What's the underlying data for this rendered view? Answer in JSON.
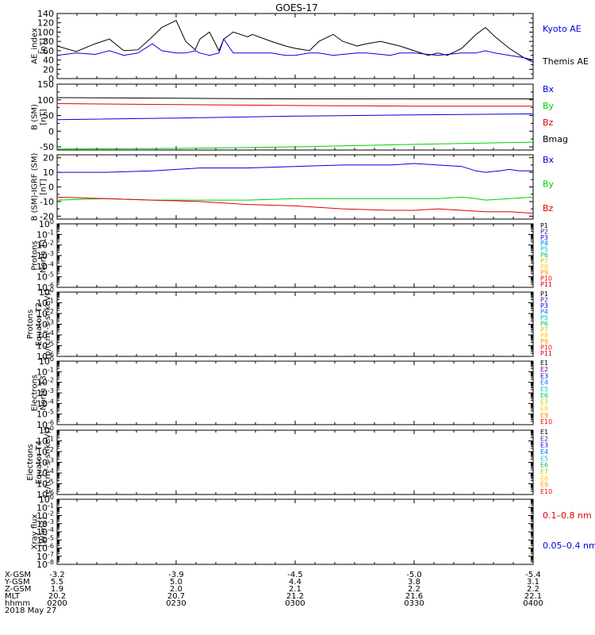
{
  "title": "GOES-17",
  "colors": {
    "black": "#000000",
    "blue": "#0000e0",
    "green": "#00d000",
    "red": "#e00000",
    "p_labels": [
      "#000000",
      "#700070",
      "#0000e0",
      "#0070ff",
      "#00c8c8",
      "#00c070",
      "#c8c800",
      "#ffd000",
      "#ff9000",
      "#ff0000",
      "#c00000"
    ]
  },
  "chart_data": [
    {
      "type": "line",
      "ylabel": [
        "AE_index",
        "[nT]"
      ],
      "ylim": [
        0,
        140
      ],
      "yticks": [
        "0",
        "20",
        "40",
        "60",
        "80",
        "100",
        "120",
        "140"
      ],
      "legend": [
        {
          "label": "Kyoto AE",
          "color": "#0000e0"
        },
        {
          "label": "Themis AE",
          "color": "#000000"
        }
      ],
      "series": [
        {
          "name": "Themis AE",
          "color": "#000000",
          "x": [
            0,
            4,
            8,
            11,
            14,
            17,
            20,
            22,
            25,
            27,
            29,
            30,
            32,
            34,
            35,
            37,
            40,
            41,
            45,
            48,
            50,
            53,
            55,
            58,
            60,
            63,
            65,
            68,
            70,
            72,
            75,
            78,
            80,
            82,
            85,
            88,
            90,
            92,
            95,
            98,
            100
          ],
          "y": [
            70,
            58,
            75,
            85,
            60,
            62,
            90,
            110,
            125,
            80,
            62,
            85,
            100,
            60,
            85,
            100,
            90,
            95,
            80,
            70,
            65,
            60,
            80,
            95,
            80,
            70,
            75,
            80,
            75,
            70,
            60,
            50,
            55,
            50,
            65,
            95,
            110,
            90,
            65,
            45,
            40
          ]
        },
        {
          "name": "Kyoto AE",
          "color": "#0000e0",
          "x": [
            0,
            4,
            8,
            11,
            14,
            17,
            20,
            22,
            25,
            27,
            29,
            30,
            32,
            34,
            35,
            37,
            40,
            41,
            45,
            48,
            50,
            53,
            55,
            58,
            60,
            63,
            65,
            68,
            70,
            72,
            75,
            78,
            80,
            82,
            85,
            88,
            90,
            92,
            95,
            98,
            100
          ],
          "y": [
            50,
            55,
            52,
            60,
            50,
            55,
            75,
            60,
            55,
            55,
            60,
            55,
            50,
            55,
            85,
            55,
            55,
            55,
            55,
            50,
            50,
            55,
            55,
            50,
            52,
            55,
            55,
            52,
            50,
            55,
            55,
            52,
            50,
            52,
            55,
            55,
            60,
            55,
            50,
            45,
            35
          ]
        }
      ]
    },
    {
      "type": "line",
      "ylabel": [
        "B (SM)",
        "[nT]"
      ],
      "ylim": [
        -60,
        150
      ],
      "yticks": [
        "-50",
        "0",
        "50",
        "100",
        "150"
      ],
      "legend": [
        {
          "label": "Bx",
          "color": "#0000e0"
        },
        {
          "label": "By",
          "color": "#00d000"
        },
        {
          "label": "Bz",
          "color": "#e00000"
        },
        {
          "label": "Bmag",
          "color": "#000000"
        }
      ],
      "series": [
        {
          "name": "Bmag",
          "color": "#000000",
          "x": [
            0,
            25,
            50,
            75,
            100
          ],
          "y": [
            107,
            105,
            103,
            103,
            103
          ]
        },
        {
          "name": "Bz",
          "color": "#e00000",
          "x": [
            0,
            25,
            50,
            75,
            100
          ],
          "y": [
            88,
            85,
            82,
            80,
            80
          ]
        },
        {
          "name": "Bx",
          "color": "#0000e0",
          "x": [
            0,
            25,
            50,
            75,
            100
          ],
          "y": [
            37,
            42,
            48,
            52,
            55
          ]
        },
        {
          "name": "By",
          "color": "#00d000",
          "x": [
            0,
            25,
            50,
            75,
            100
          ],
          "y": [
            -57,
            -55,
            -50,
            -42,
            -35
          ]
        }
      ]
    },
    {
      "type": "line",
      "ylabel": [
        "B (SM)-IGRF (SM)",
        "[nT]"
      ],
      "ylim": [
        -22,
        22
      ],
      "yticks": [
        "-20",
        "-10",
        "0",
        "10",
        "20"
      ],
      "legend": [
        {
          "label": "Bx",
          "color": "#0000e0"
        },
        {
          "label": "By",
          "color": "#00d000"
        },
        {
          "label": "Bz",
          "color": "#e00000"
        }
      ],
      "series": [
        {
          "name": "Bx",
          "color": "#0000e0",
          "x": [
            0,
            10,
            20,
            30,
            40,
            50,
            60,
            70,
            75,
            80,
            85,
            88,
            90,
            93,
            95,
            97,
            100
          ],
          "y": [
            10,
            10,
            11,
            13,
            13,
            14,
            15,
            15,
            16,
            15,
            14,
            11,
            10,
            11,
            12,
            11,
            11
          ]
        },
        {
          "name": "By",
          "color": "#00d000",
          "x": [
            0,
            10,
            20,
            30,
            40,
            50,
            60,
            70,
            75,
            80,
            85,
            88,
            90,
            95,
            100
          ],
          "y": [
            -9,
            -8,
            -9,
            -9,
            -9,
            -8,
            -8,
            -8,
            -8,
            -8,
            -7,
            -8,
            -9,
            -8,
            -7
          ]
        },
        {
          "name": "Bz",
          "color": "#e00000",
          "x": [
            0,
            10,
            20,
            30,
            40,
            50,
            60,
            70,
            75,
            80,
            85,
            90,
            95,
            100
          ],
          "y": [
            -7,
            -8,
            -9,
            -10,
            -12,
            -13,
            -15,
            -16,
            -16,
            -15,
            -16,
            -17,
            -17,
            -18
          ]
        }
      ]
    },
    {
      "type": "line",
      "ylabel": [
        "Protons",
        "North T1"
      ],
      "ylim_exp": [
        -6,
        0
      ],
      "legend": [
        "P1",
        "P2",
        "P3",
        "P4",
        "P5",
        "P6",
        "P7",
        "P8",
        "P9",
        "P10",
        "P11"
      ],
      "series": []
    },
    {
      "type": "line",
      "ylabel": [
        "Protons",
        "Equator T2",
        "[p/(cm²-s-sr-keV)]"
      ],
      "ylim_exp": [
        -6,
        0
      ],
      "legend": [
        "P1",
        "P2",
        "P3",
        "P4",
        "P5",
        "P6",
        "P7",
        "P8",
        "P9",
        "P10",
        "P11"
      ],
      "series": []
    },
    {
      "type": "line",
      "ylabel": [
        "Electrons",
        "North T3"
      ],
      "ylim_exp": [
        -6,
        0
      ],
      "legend": [
        "E1",
        "E2",
        "E3",
        "E4",
        "E5",
        "E6",
        "E7",
        "E8",
        "E9",
        "E10"
      ],
      "series": []
    },
    {
      "type": "line",
      "ylabel": [
        "Electrons",
        "Equator T4",
        "[e/(cm²-s-sr-keV)]"
      ],
      "ylim_exp": [
        -6,
        0
      ],
      "legend": [
        "E1",
        "E2",
        "E3",
        "E4",
        "E5",
        "E6",
        "E7",
        "E8",
        "E9",
        "E10"
      ],
      "series": []
    },
    {
      "type": "line",
      "ylabel": [
        "Xray flux",
        "[W/m2]"
      ],
      "ylim_exp": [
        -8,
        0
      ],
      "legend": [
        {
          "label": "0.1–0.8 nm",
          "color": "#e00000"
        },
        {
          "label": "0.05–0.4 nm",
          "color": "#0000e0"
        }
      ],
      "series": []
    }
  ],
  "footer": {
    "row_labels": [
      "X-GSM",
      "Y-GSM",
      "Z-GSM",
      "MLT",
      "hhmm",
      "2018 May 27"
    ],
    "columns": [
      {
        "x_gsm": "-3.2",
        "y_gsm": "5.5",
        "z_gsm": "1.9",
        "mlt": "20.2",
        "hhmm": "0200"
      },
      {
        "x_gsm": "-3.9",
        "y_gsm": "5.0",
        "z_gsm": "2.0",
        "mlt": "20.7",
        "hhmm": "0230"
      },
      {
        "x_gsm": "-4.5",
        "y_gsm": "4.4",
        "z_gsm": "2.1",
        "mlt": "21.2",
        "hhmm": "0300"
      },
      {
        "x_gsm": "-5.0",
        "y_gsm": "3.8",
        "z_gsm": "2.2",
        "mlt": "21.6",
        "hhmm": "0330"
      },
      {
        "x_gsm": "-5.4",
        "y_gsm": "3.1",
        "z_gsm": "2.2",
        "mlt": "22.1",
        "hhmm": "0400"
      }
    ]
  }
}
